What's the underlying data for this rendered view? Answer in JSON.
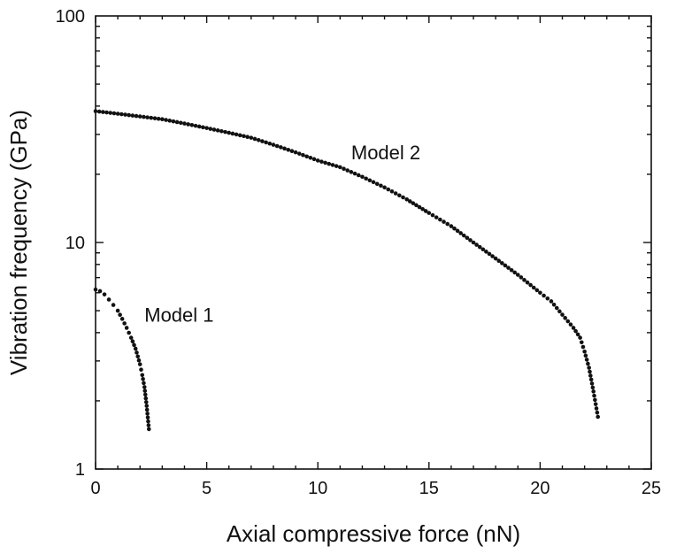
{
  "chart_data": {
    "type": "scatter",
    "xlabel": "Axial compressive force (nN)",
    "ylabel": "Vibration frequency (GPa)",
    "xlim": [
      0,
      25
    ],
    "ylim": [
      1,
      100
    ],
    "yscale": "log",
    "x_ticks": [
      0,
      5,
      10,
      15,
      20,
      25
    ],
    "x_tick_labels": [
      "0",
      "5",
      "10",
      "15",
      "20",
      "25"
    ],
    "y_ticks": [
      1,
      10,
      100
    ],
    "y_tick_labels": [
      "1",
      "10",
      "100"
    ],
    "grid": false,
    "legend": "none",
    "annotations": [
      {
        "text": "Model 1",
        "x": 2.2,
        "y": 4.8
      },
      {
        "text": "Model 2",
        "x": 11.5,
        "y": 25
      }
    ],
    "series": [
      {
        "x": [
          0,
          0.2,
          0.4,
          0.6,
          0.8,
          1.0,
          1.2,
          1.4,
          1.6,
          1.8,
          2.0,
          2.1,
          2.2,
          2.3,
          2.4
        ],
        "y": [
          6.2,
          6.1,
          5.9,
          5.6,
          5.3,
          5.0,
          4.6,
          4.2,
          3.8,
          3.4,
          2.9,
          2.6,
          2.3,
          1.9,
          1.5
        ]
      },
      {
        "x": [
          0,
          1,
          2,
          3,
          4,
          5,
          6,
          7,
          8,
          9,
          10,
          11,
          12,
          13,
          14,
          15,
          16,
          17,
          18,
          19,
          20,
          20.5,
          21,
          21.5,
          21.8,
          22.0,
          22.2,
          22.4,
          22.6
        ],
        "y": [
          38,
          37,
          36,
          35,
          33.5,
          32,
          30.5,
          29,
          27,
          25,
          23,
          21.5,
          19.5,
          17.5,
          15.5,
          13.5,
          11.8,
          10.0,
          8.5,
          7.2,
          6.0,
          5.5,
          4.8,
          4.2,
          3.8,
          3.3,
          2.8,
          2.2,
          1.7
        ]
      }
    ]
  }
}
